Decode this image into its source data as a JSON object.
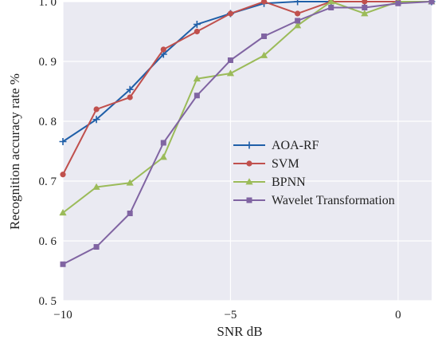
{
  "chart_data": {
    "type": "line",
    "xlabel": "SNR  dB",
    "ylabel": "Recognition accuracy rate  %",
    "xlim": [
      -10,
      1
    ],
    "ylim": [
      0.5,
      1.0
    ],
    "xticks": [
      -10,
      -5,
      0
    ],
    "xtick_labels": [
      "−10",
      "−5",
      "0"
    ],
    "yticks": [
      0.5,
      0.6,
      0.7,
      0.8,
      0.9,
      1.0
    ],
    "ytick_labels": [
      "0. 5",
      "0. 6",
      "0. 7",
      "0. 8",
      "0. 9",
      "1. 0"
    ],
    "grid": true,
    "legend_position": "center-right",
    "x": [
      -10,
      -9,
      -8,
      -7,
      -6,
      -5,
      -4,
      -3,
      -2,
      -1,
      0,
      1
    ],
    "series": [
      {
        "name": "AOA-RF",
        "color": "#1f5fa8",
        "marker": "plus",
        "values": [
          0.766,
          0.803,
          0.853,
          0.912,
          0.962,
          0.98,
          0.997,
          1.0,
          1.0,
          1.0,
          1.0,
          1.0
        ]
      },
      {
        "name": "SVM",
        "color": "#c0504d",
        "marker": "circle",
        "values": [
          0.711,
          0.82,
          0.84,
          0.92,
          0.95,
          0.98,
          1.0,
          0.98,
          1.0,
          1.0,
          1.0,
          1.0
        ]
      },
      {
        "name": "BPNN",
        "color": "#9bbb59",
        "marker": "triangle",
        "values": [
          0.647,
          0.69,
          0.697,
          0.74,
          0.871,
          0.88,
          0.91,
          0.96,
          1.0,
          0.98,
          1.0,
          1.0
        ]
      },
      {
        "name": "Wavelet Transformation",
        "color": "#8064a2",
        "marker": "square",
        "values": [
          0.561,
          0.59,
          0.646,
          0.764,
          0.843,
          0.902,
          0.942,
          0.968,
          0.99,
          0.99,
          0.997,
          1.0
        ]
      }
    ]
  }
}
